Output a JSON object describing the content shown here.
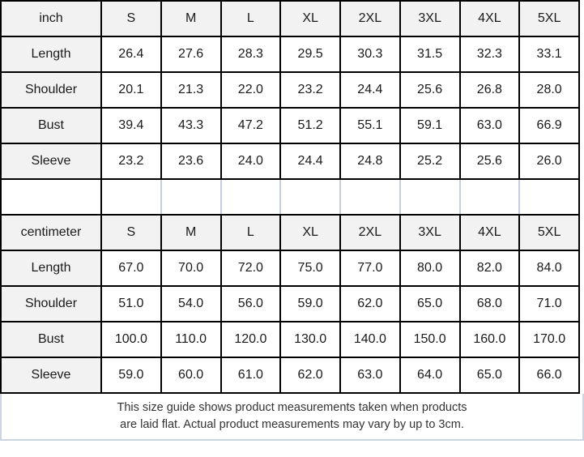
{
  "chart_data": [
    {
      "type": "table",
      "unit": "inch",
      "columns": [
        "inch",
        "S",
        "M",
        "L",
        "XL",
        "2XL",
        "3XL",
        "4XL",
        "5XL"
      ],
      "rows": [
        {
          "label": "Length",
          "values": [
            "26.4",
            "27.6",
            "28.3",
            "29.5",
            "30.3",
            "31.5",
            "32.3",
            "33.1"
          ]
        },
        {
          "label": "Shoulder",
          "values": [
            "20.1",
            "21.3",
            "22.0",
            "23.2",
            "24.4",
            "25.6",
            "26.8",
            "28.0"
          ]
        },
        {
          "label": "Bust",
          "values": [
            "39.4",
            "43.3",
            "47.2",
            "51.2",
            "55.1",
            "59.1",
            "63.0",
            "66.9"
          ]
        },
        {
          "label": "Sleeve",
          "values": [
            "23.2",
            "23.6",
            "24.0",
            "24.4",
            "24.8",
            "25.2",
            "25.6",
            "26.0"
          ]
        }
      ]
    },
    {
      "type": "table",
      "unit": "centimeter",
      "columns": [
        "centimeter",
        "S",
        "M",
        "L",
        "XL",
        "2XL",
        "3XL",
        "4XL",
        "5XL"
      ],
      "rows": [
        {
          "label": "Length",
          "values": [
            "67.0",
            "70.0",
            "72.0",
            "75.0",
            "77.0",
            "80.0",
            "82.0",
            "84.0"
          ]
        },
        {
          "label": "Shoulder",
          "values": [
            "51.0",
            "54.0",
            "56.0",
            "59.0",
            "62.0",
            "65.0",
            "68.0",
            "71.0"
          ]
        },
        {
          "label": "Bust",
          "values": [
            "100.0",
            "110.0",
            "120.0",
            "130.0",
            "140.0",
            "150.0",
            "160.0",
            "170.0"
          ]
        },
        {
          "label": "Sleeve",
          "values": [
            "59.0",
            "60.0",
            "61.0",
            "62.0",
            "63.0",
            "64.0",
            "65.0",
            "66.0"
          ]
        }
      ]
    }
  ],
  "footer": {
    "line1": "This size guide shows product measurements taken when products",
    "line2": "are laid flat. Actual product measurements may vary by up to 3cm."
  },
  "colors": {
    "border": "#000000",
    "light_border": "#c4cede",
    "header_bg": "#f2f2f2",
    "cell_bg": "#ffffff",
    "text": "#1a1a1a",
    "footer_text": "#333333"
  }
}
